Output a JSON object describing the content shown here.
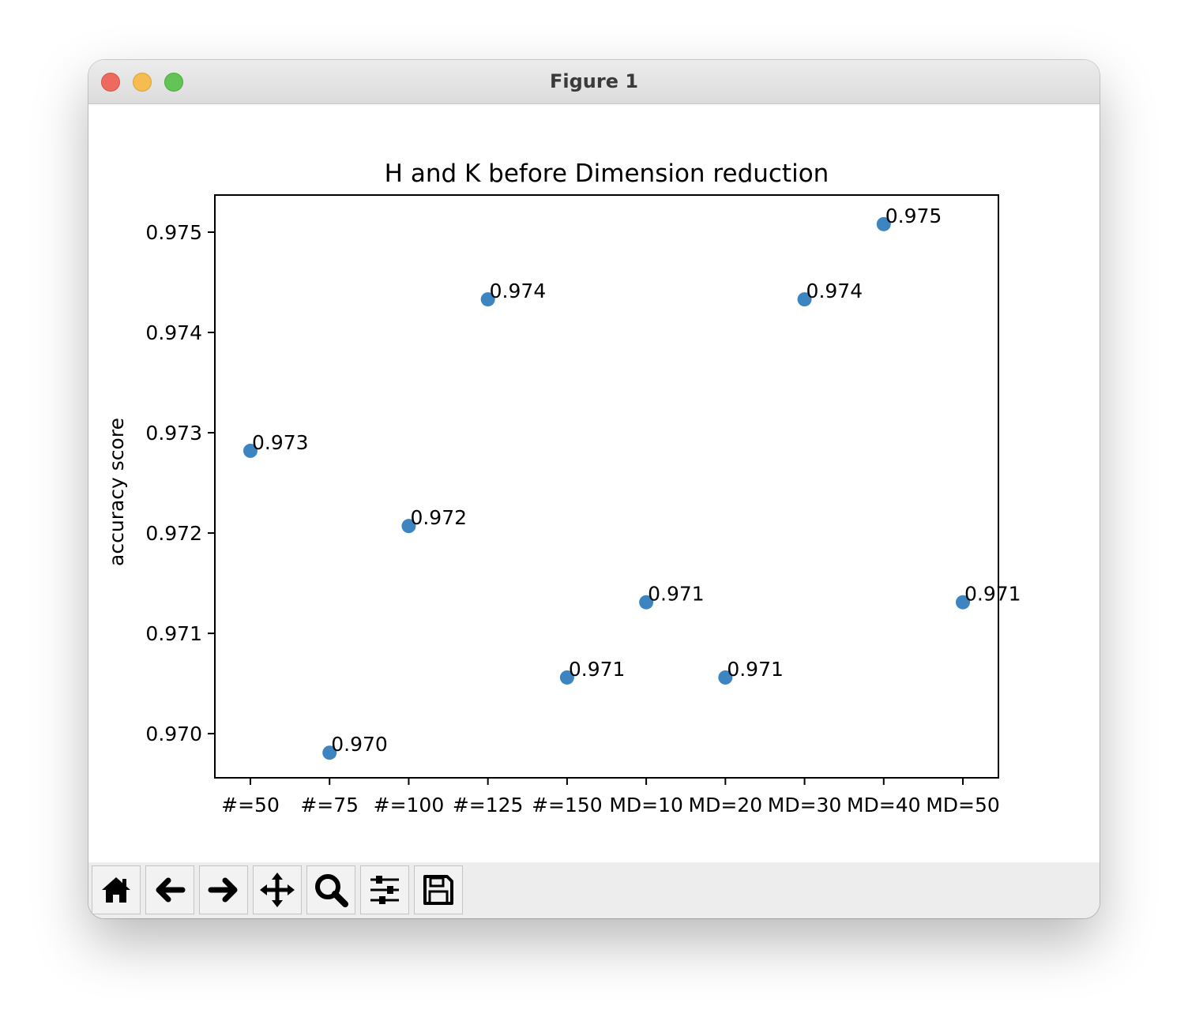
{
  "window": {
    "title": "Figure 1"
  },
  "toolbar": {
    "tools": [
      {
        "name": "home-icon"
      },
      {
        "name": "back-arrow-icon"
      },
      {
        "name": "forward-arrow-icon"
      },
      {
        "name": "pan-move-icon"
      },
      {
        "name": "zoom-magnifier-icon"
      },
      {
        "name": "configure-subplots-icon"
      },
      {
        "name": "save-floppy-icon"
      }
    ]
  },
  "colors": {
    "marker": "#3d85c0"
  },
  "chart_data": {
    "type": "scatter",
    "title": "H and K before Dimension reduction",
    "xlabel": "",
    "ylabel": "accuracy score",
    "categories": [
      "#=50",
      "#=75",
      "#=100",
      "#=125",
      "#=150",
      "MD=10",
      "MD=20",
      "MD=30",
      "MD=40",
      "MD=50"
    ],
    "values": [
      0.97282,
      0.96981,
      0.97207,
      0.97433,
      0.97056,
      0.97131,
      0.97056,
      0.97433,
      0.97508,
      0.97131
    ],
    "point_labels": [
      "0.973",
      "0.970",
      "0.972",
      "0.974",
      "0.971",
      "0.971",
      "0.971",
      "0.974",
      "0.975",
      "0.971"
    ],
    "ylim": [
      0.96956,
      0.97537
    ],
    "yticks": [
      0.97,
      0.971,
      0.972,
      0.973,
      0.974,
      0.975
    ],
    "ytick_labels": [
      "0.970",
      "0.971",
      "0.972",
      "0.973",
      "0.974",
      "0.975"
    ],
    "grid": false,
    "legend": false
  }
}
